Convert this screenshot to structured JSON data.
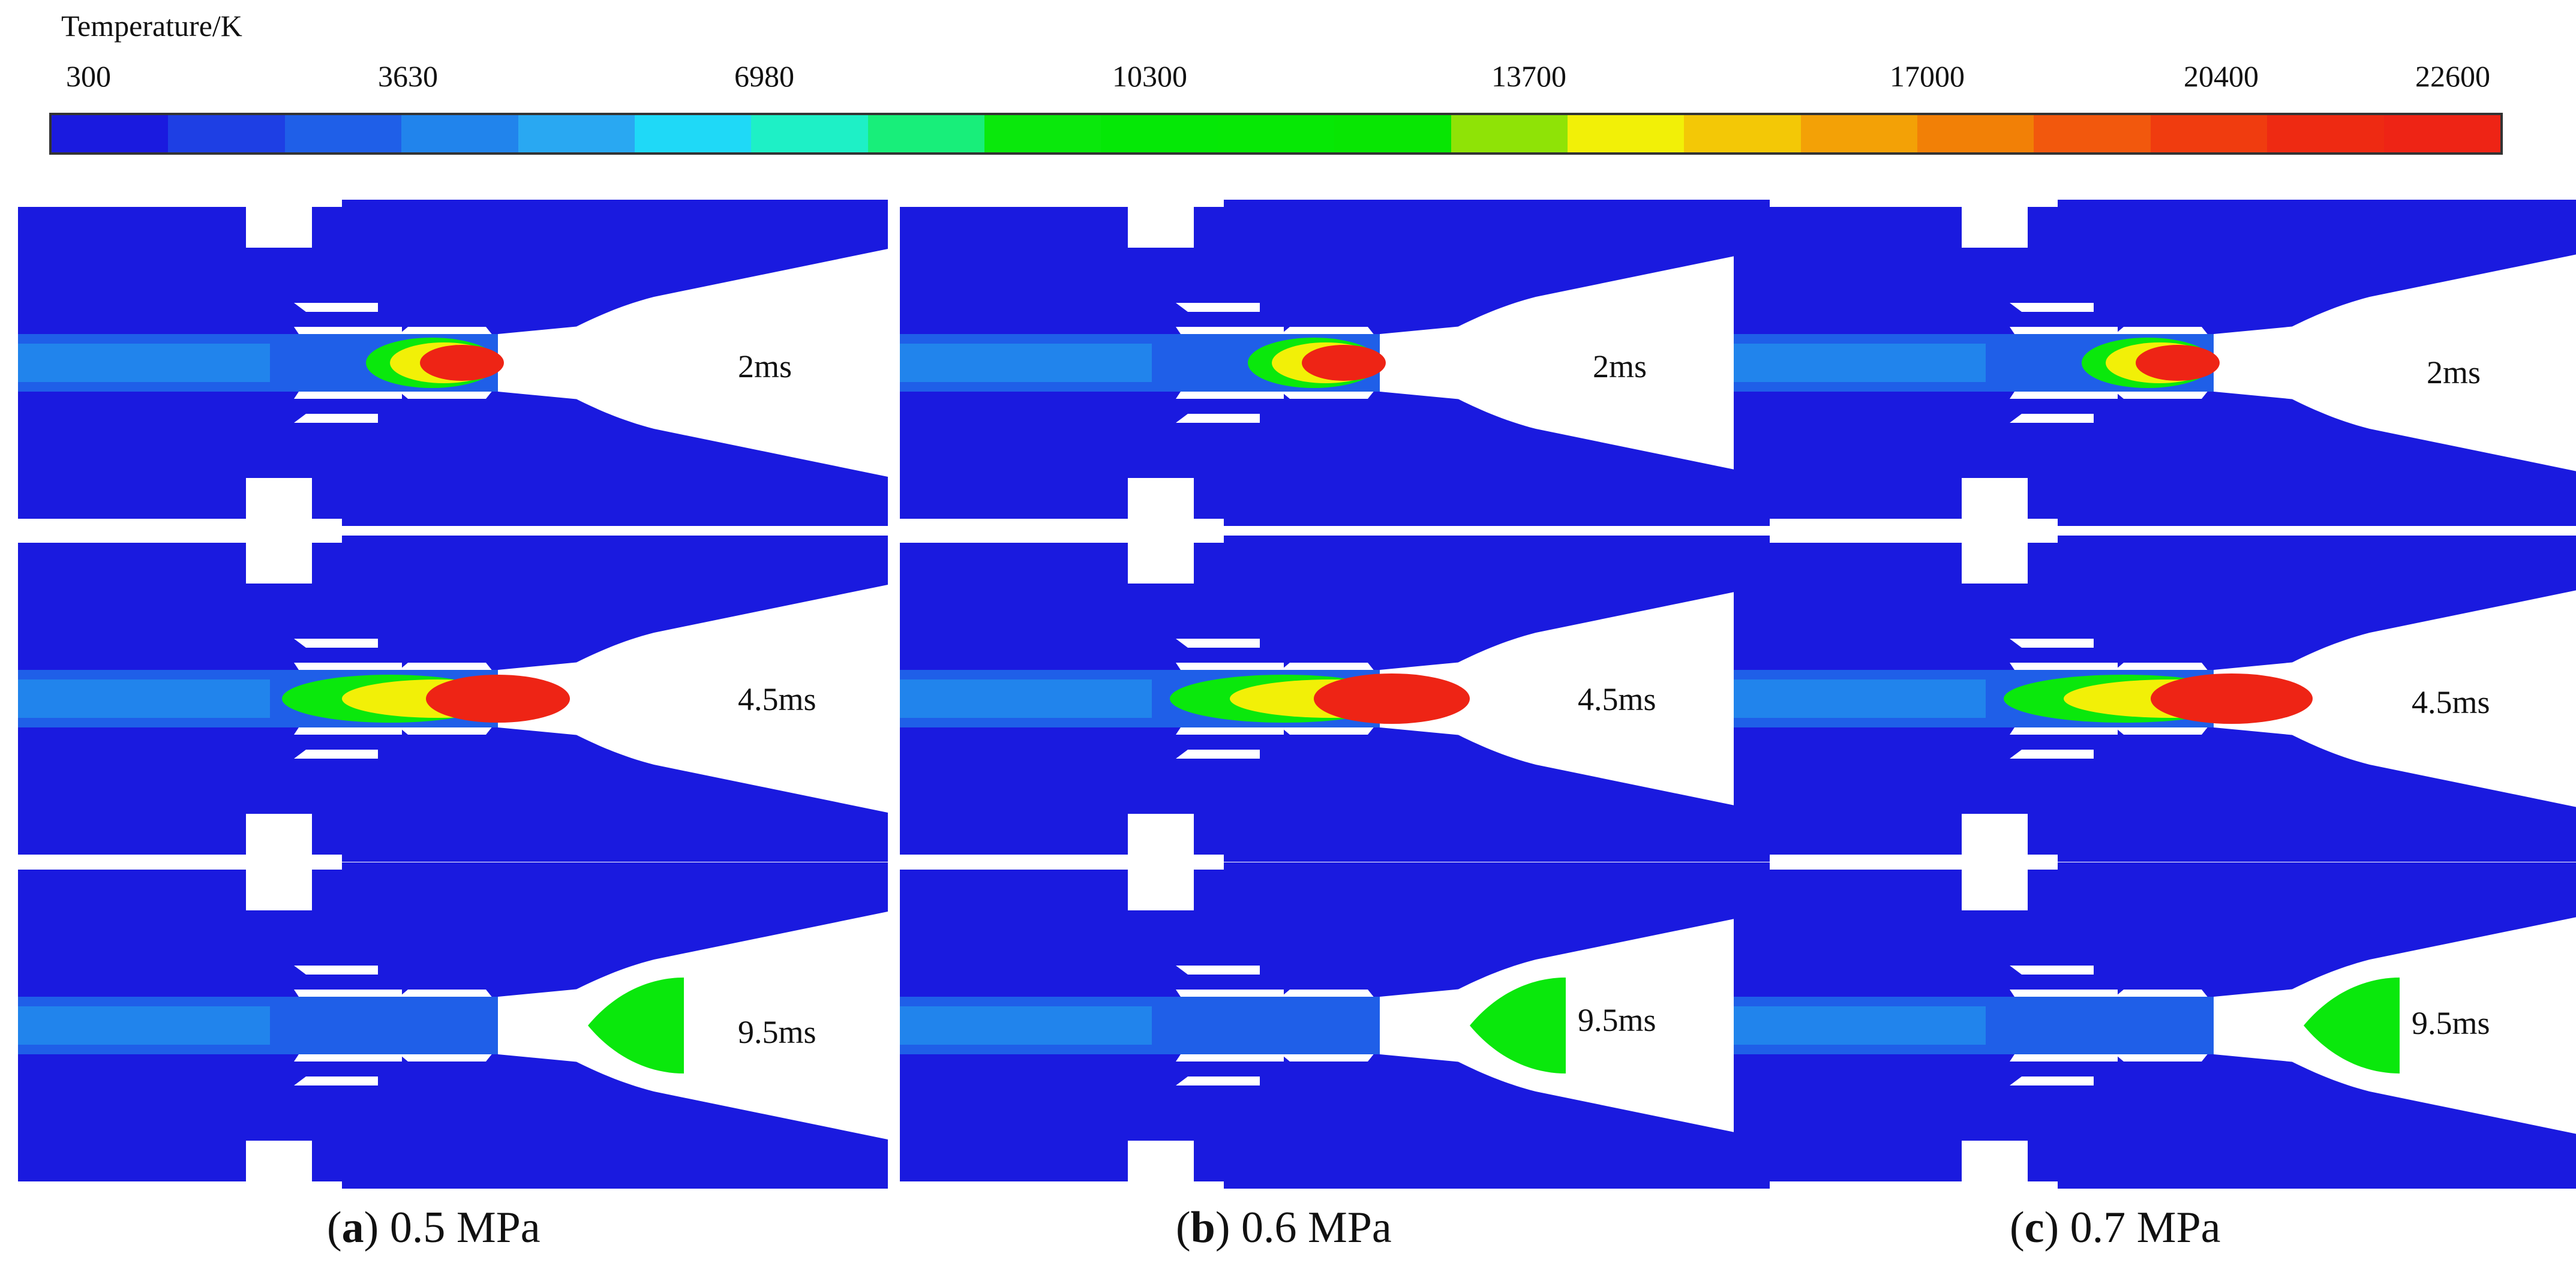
{
  "legend": {
    "title": "Temperature/K",
    "ticks": [
      "300",
      "3630",
      "6980",
      "10300",
      "13700",
      "17000",
      "20400",
      "22600"
    ],
    "colors": [
      "#1a1adf",
      "#1e3fe4",
      "#1f5fe8",
      "#2184ec",
      "#29a8f2",
      "#1fd9f7",
      "#1ef0c6",
      "#18ee7a",
      "#0ae80c",
      "#05e806",
      "#06e805",
      "#08e603",
      "#8fe306",
      "#f2f007",
      "#f3c806",
      "#f3a106",
      "#f28006",
      "#f2580d",
      "#f03c0f",
      "#ee2a12",
      "#ee2415"
    ]
  },
  "columns": [
    {
      "letter": "a",
      "caption": "0.5 MPa"
    },
    {
      "letter": "b",
      "caption": "0.6 MPa"
    },
    {
      "letter": "c",
      "caption": "0.7 MPa"
    }
  ],
  "time_labels": [
    "2ms",
    "4.5ms",
    "9.5ms"
  ],
  "colors": {
    "domain_blue": "#1a1adf",
    "plume_green": "#0ae80c",
    "plume_yellow": "#f2f007",
    "plume_red": "#ee2415"
  }
}
